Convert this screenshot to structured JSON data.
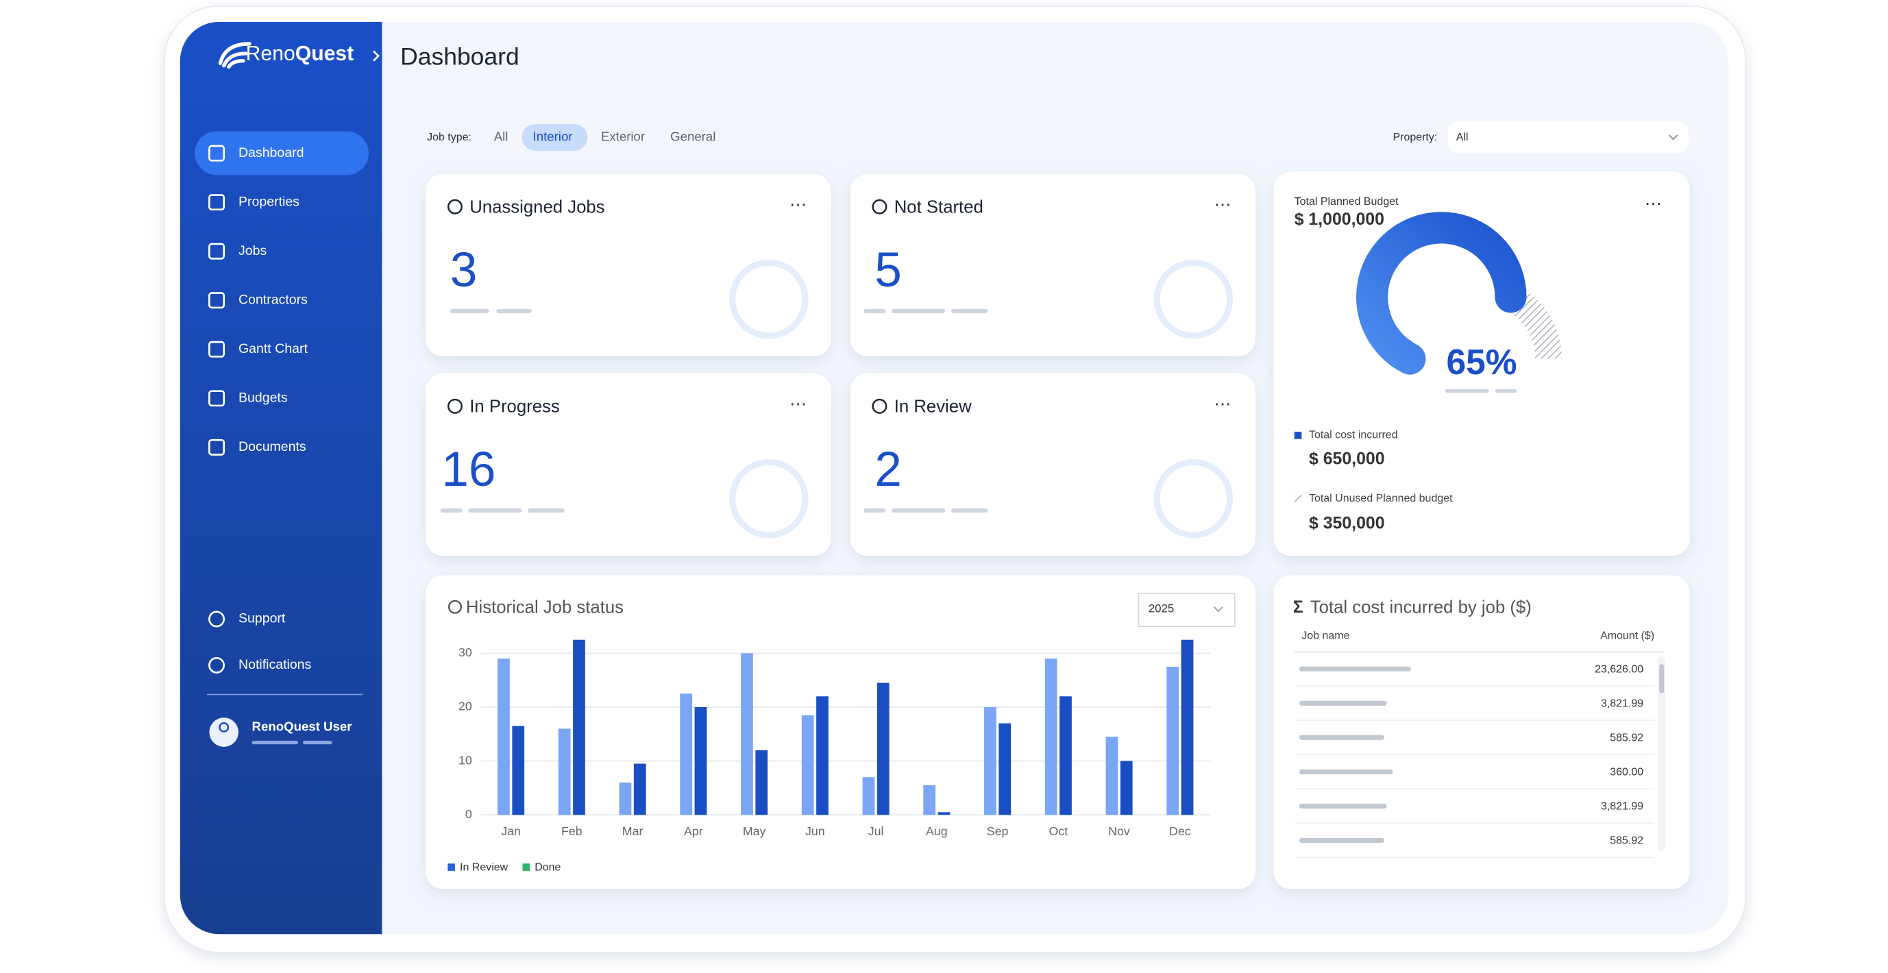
{
  "header": {
    "logo_part1": "Reno",
    "logo_part2": "Quest",
    "title": "Dashboard"
  },
  "nav": {
    "items": [
      "Dashboard",
      "Properties",
      "Jobs",
      "Contractors",
      "Gantt Chart",
      "Budgets",
      "Documents"
    ],
    "active": 0,
    "bottom": [
      "Support",
      "Notifications"
    ],
    "user": "RenoQuest User"
  },
  "filters": {
    "job_type_label": "Job type:",
    "options": [
      "All",
      "Interior",
      "Exterior",
      "General"
    ],
    "active": 1,
    "property_label": "Property:",
    "property_value": "All"
  },
  "cards": [
    {
      "title": "Unassigned Jobs",
      "value": 3
    },
    {
      "title": "Not Started",
      "value": 5
    },
    {
      "title": "In Progress",
      "value": 16
    },
    {
      "title": "In Review",
      "value": 2
    }
  ],
  "budget": {
    "title": "Total Planned Budget",
    "total": "$ 1,000,000",
    "percent": 65,
    "percent_label": "65%",
    "incurred_label": "Total cost incurred",
    "incurred": "$ 650,000",
    "unused_label": "Total Unused Planned budget",
    "unused": "$ 350,000"
  },
  "chart_data": {
    "type": "bar",
    "title": "Historical Job status",
    "year": "2025",
    "categories": [
      "Jan",
      "Feb",
      "Mar",
      "Apr",
      "May",
      "Jun",
      "Jul",
      "Aug",
      "Sep",
      "Oct",
      "Nov",
      "Dec"
    ],
    "series": [
      {
        "name": "In Review",
        "color": "#7aa6f5",
        "legend_color": "#2563d6",
        "values": [
          29,
          16,
          6,
          22.5,
          30,
          18.5,
          7,
          5.5,
          20,
          29,
          14.5,
          27.5
        ]
      },
      {
        "name": "Done",
        "color": "#1a4fc4",
        "legend_color": "#2fb36d",
        "values": [
          16.5,
          32.5,
          9.5,
          20,
          12,
          22,
          24.5,
          0.5,
          17,
          22,
          10,
          32.5
        ]
      }
    ],
    "ylim": [
      0,
      33
    ],
    "yticks": [
      0,
      10,
      20,
      30
    ],
    "grid": true
  },
  "table": {
    "title": "Total cost incurred by job ($)",
    "headers": [
      "Job name",
      "Amount ($)"
    ],
    "amounts": [
      "23,626.00",
      "3,821.99",
      "585.92",
      "360.00",
      "3,821.99",
      "585.92"
    ]
  }
}
